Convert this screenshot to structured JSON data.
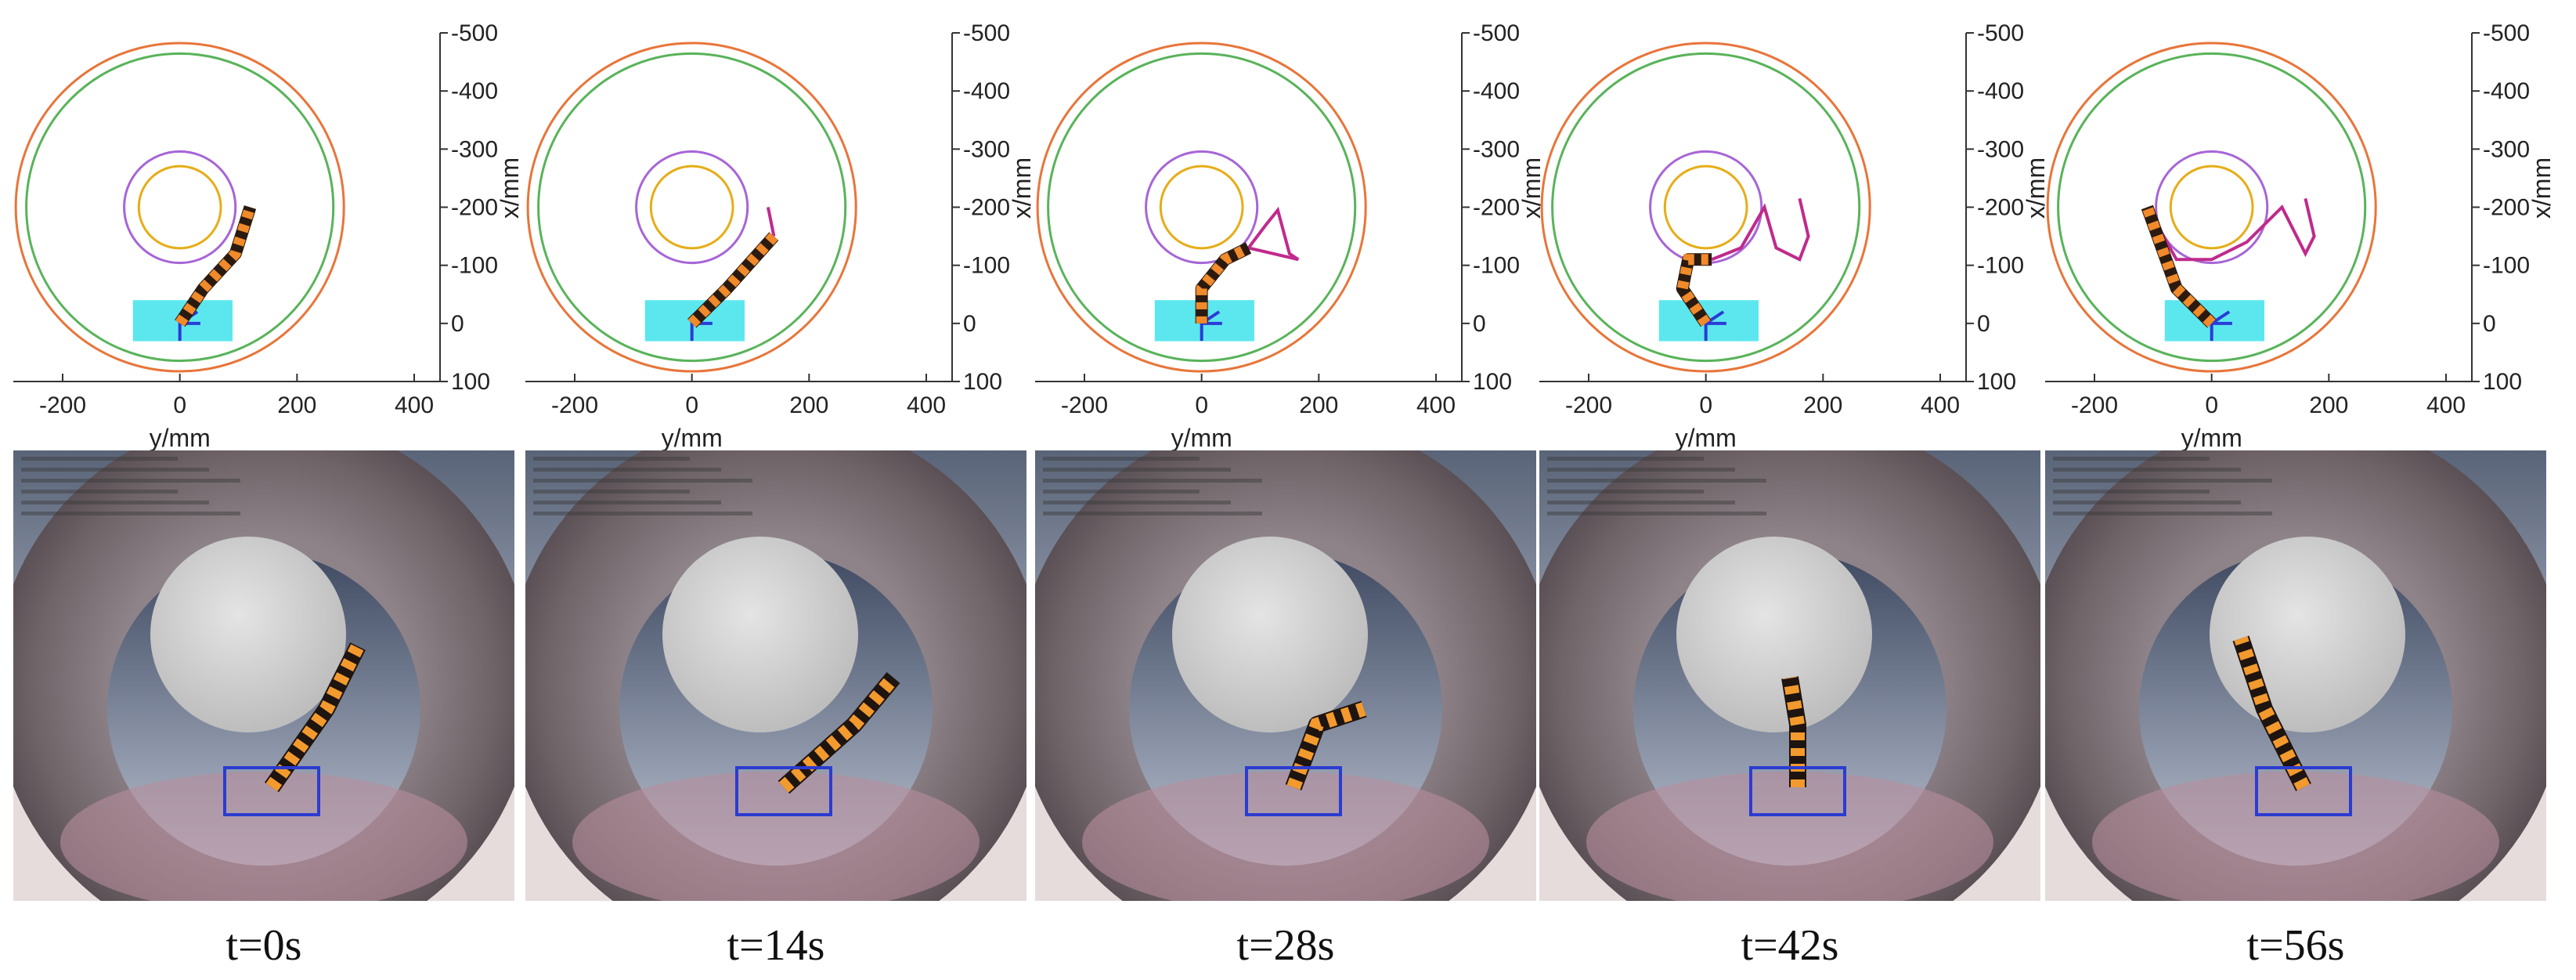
{
  "panels": [
    {
      "time": "t=0s",
      "plot": {
        "v_axis": {
          "label": "x/mm",
          "ticks": [
            -500,
            -400,
            -300,
            -200,
            -100,
            0,
            100
          ]
        },
        "h_axis": {
          "label": "y/mm",
          "ticks": [
            -200,
            0,
            200,
            400
          ]
        }
      }
    },
    {
      "time": "t=14s",
      "plot": {
        "v_axis": {
          "label": "x/mm",
          "ticks": [
            -500,
            -400,
            -300,
            -200,
            -100,
            0,
            100
          ]
        },
        "h_axis": {
          "label": "y/mm",
          "ticks": [
            -200,
            0,
            200,
            400
          ]
        }
      }
    },
    {
      "time": "t=28s",
      "plot": {
        "v_axis": {
          "label": "x/mm",
          "ticks": [
            -500,
            -400,
            -300,
            -200,
            -100,
            0,
            100
          ]
        },
        "h_axis": {
          "label": "y/mm",
          "ticks": [
            -200,
            0,
            200,
            400
          ]
        }
      }
    },
    {
      "time": "t=42s",
      "plot": {
        "v_axis": {
          "label": "x/mm",
          "ticks": [
            -500,
            -400,
            -300,
            -200,
            -100,
            0,
            100
          ]
        },
        "h_axis": {
          "label": "y/mm",
          "ticks": [
            -200,
            0,
            200,
            400
          ]
        }
      }
    },
    {
      "time": "t=56s",
      "plot": {
        "v_axis": {
          "label": "x/mm",
          "ticks": [
            -500,
            -400,
            -300,
            -200,
            -100,
            0,
            100
          ]
        },
        "h_axis": {
          "label": "y/mm",
          "ticks": [
            -200,
            0,
            200,
            400
          ]
        }
      }
    }
  ]
}
